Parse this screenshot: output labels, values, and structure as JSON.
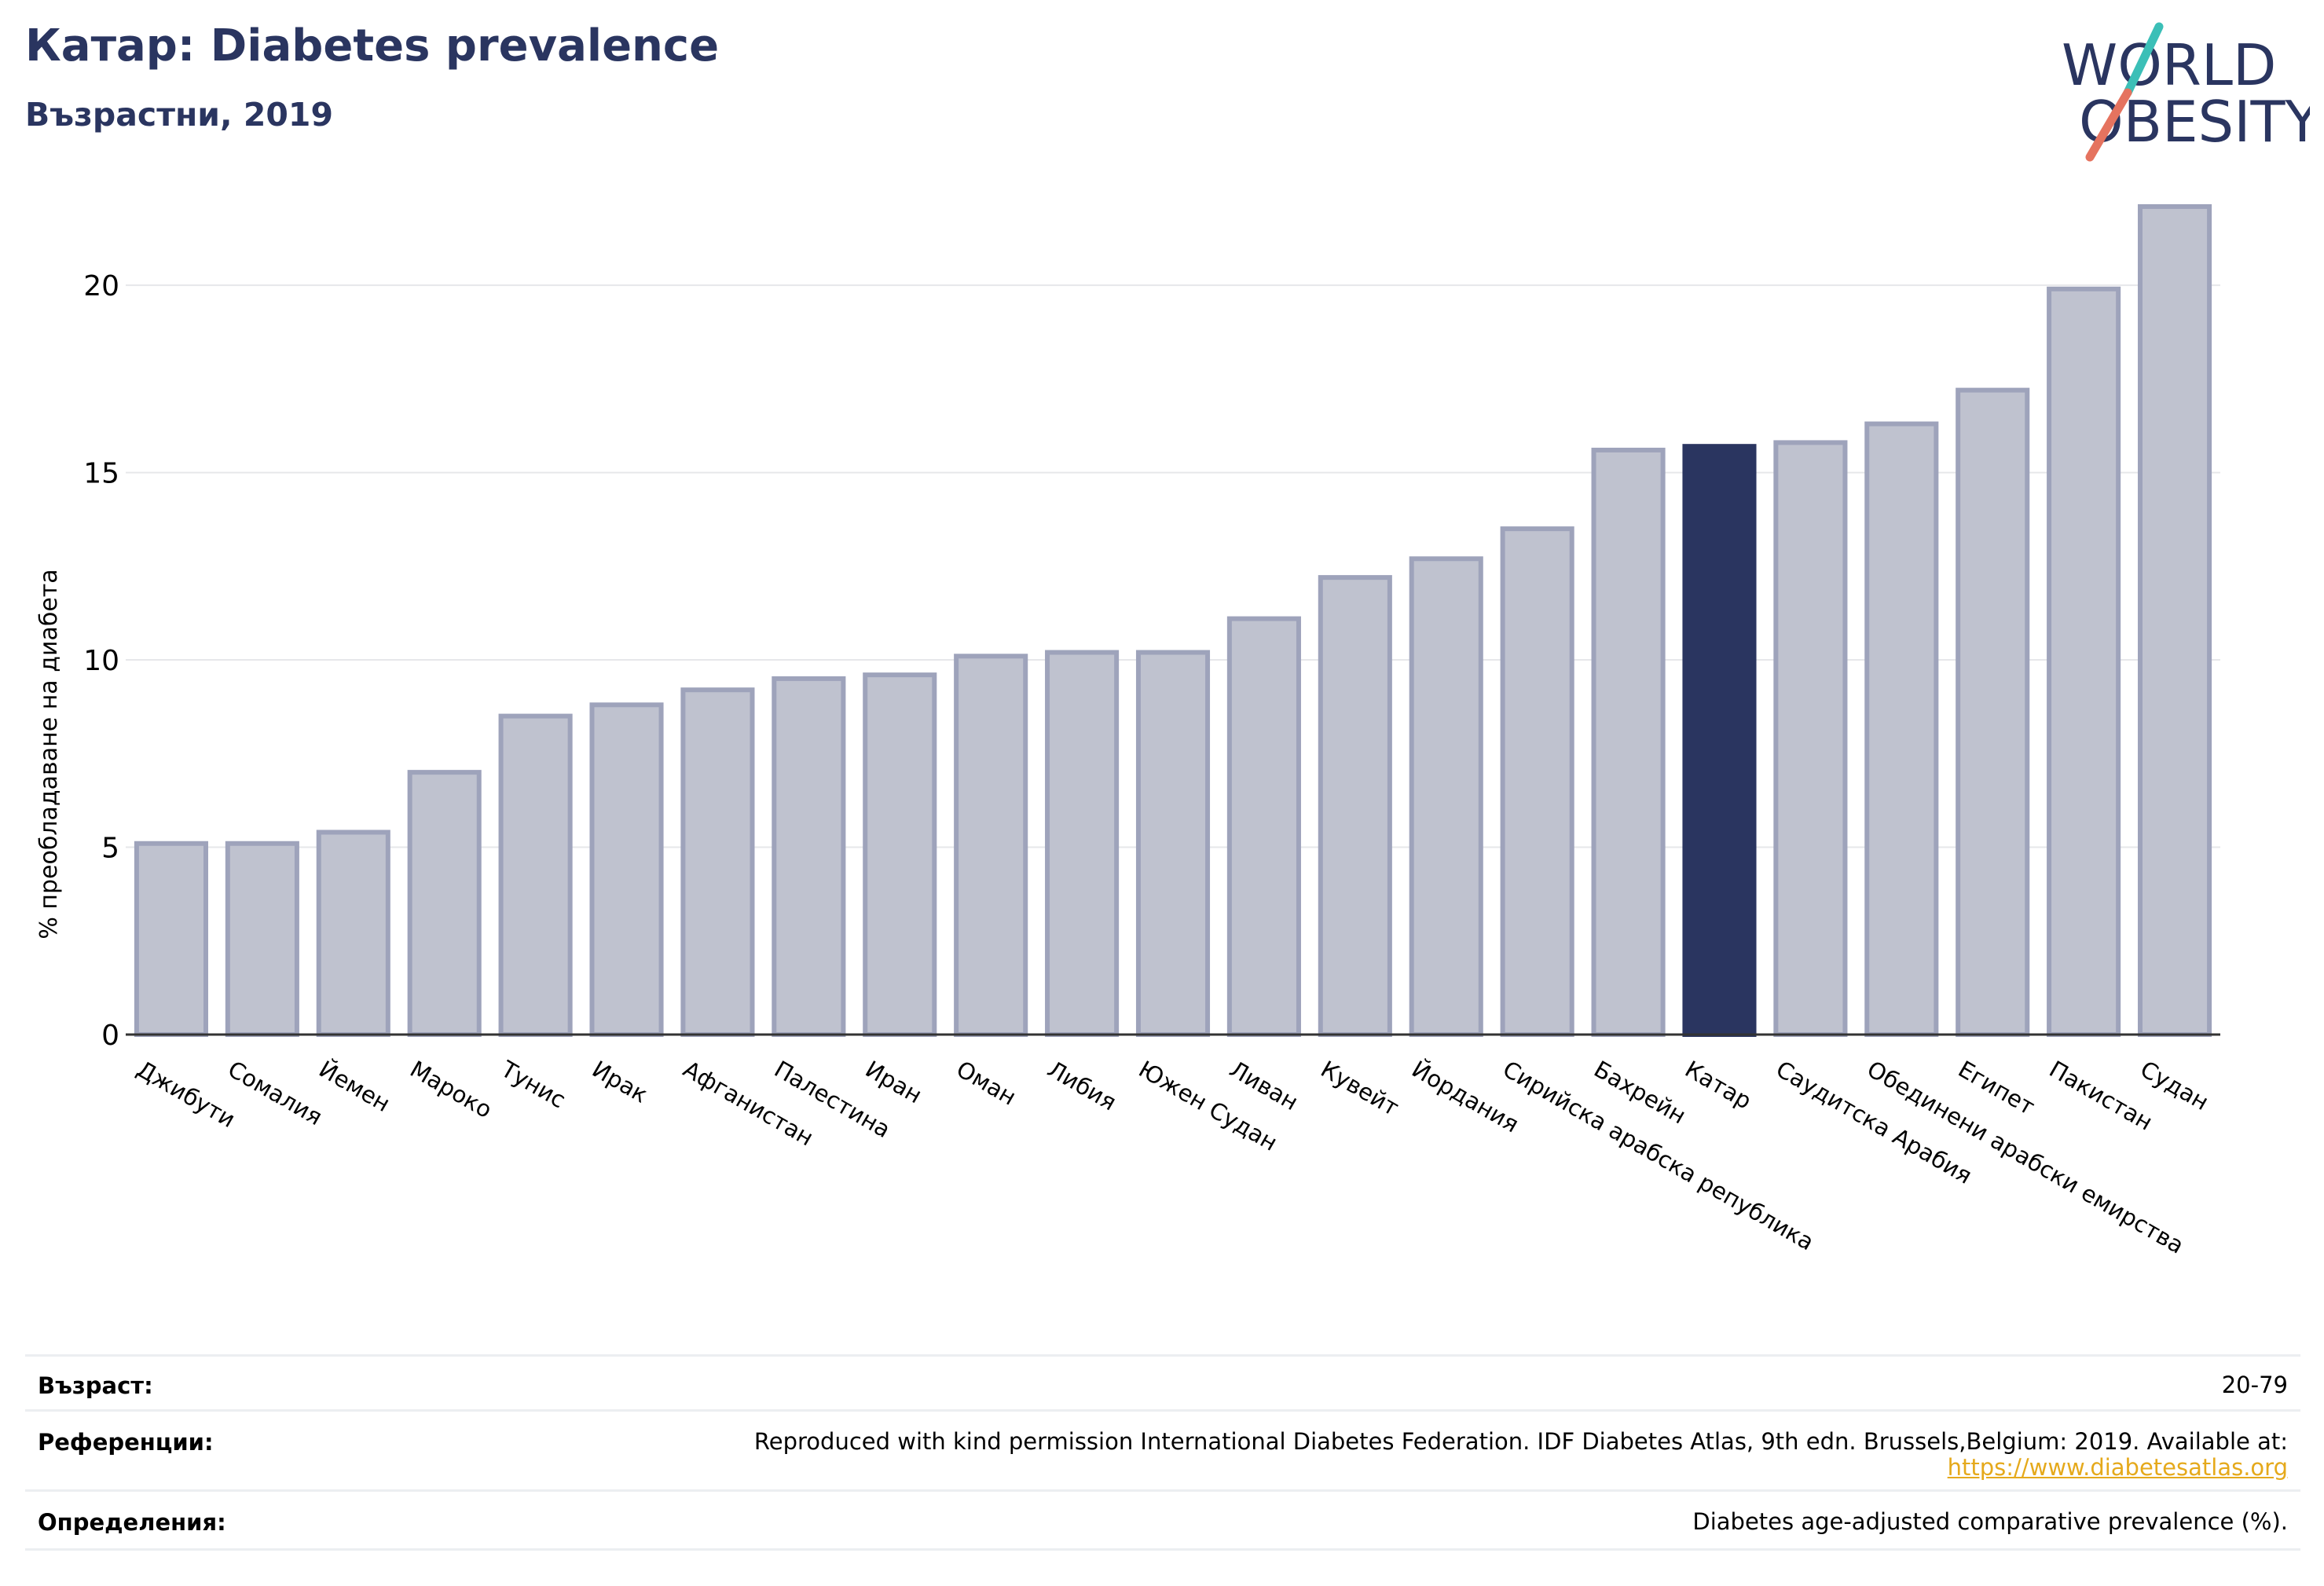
{
  "header": {
    "title": "Катар: Diabetes prevalence",
    "subtitle": "Възрастни, 2019"
  },
  "logo": {
    "line1": "WORLD",
    "line2": "OBESITY",
    "text_color": "#2a3560",
    "slash_colors": [
      "#3bbfb7",
      "#e5735f"
    ]
  },
  "colors": {
    "bar_default": "#bfc2cf",
    "bar_border": "#9ea3bb",
    "bar_highlight": "#2a3560",
    "grid": "#e6e7ea",
    "axis": "#333333"
  },
  "chart_data": {
    "type": "bar",
    "ylabel": "% преобладаване на диабета",
    "ylim": [
      0,
      23
    ],
    "yticks": [
      0,
      5,
      10,
      15,
      20
    ],
    "highlight": "Катар",
    "categories": [
      "Джибути",
      "Сомалия",
      "Йемен",
      "Мароко",
      "Тунис",
      "Ирак",
      "Афганистан",
      "Палестина",
      "Иран",
      "Оман",
      "Либия",
      "Южен Судан",
      "Ливан",
      "Кувейт",
      "Йордания",
      "Сирийска арабска република",
      "Бахрейн",
      "Катар",
      "Саудитска Арабия",
      "Обединени арабски емирства",
      "Египет",
      "Пакистан",
      "Судан"
    ],
    "values": [
      5.1,
      5.1,
      5.4,
      7.0,
      8.5,
      8.8,
      9.2,
      9.5,
      9.6,
      10.1,
      10.2,
      10.2,
      11.1,
      12.2,
      12.7,
      13.5,
      15.6,
      15.7,
      15.8,
      16.3,
      17.2,
      19.9,
      22.1
    ]
  },
  "footer": {
    "age_label": "Възраст:",
    "age_value": "20-79",
    "refs_label": "Референции:",
    "refs_text": "Reproduced with kind permission International Diabetes Federation. IDF Diabetes Atlas, 9th edn. Brussels,Belgium: 2019. Available at:",
    "refs_link": "https://www.diabetesatlas.org",
    "defs_label": "Определения:",
    "defs_value": "Diabetes age-adjusted comparative prevalence (%)."
  }
}
